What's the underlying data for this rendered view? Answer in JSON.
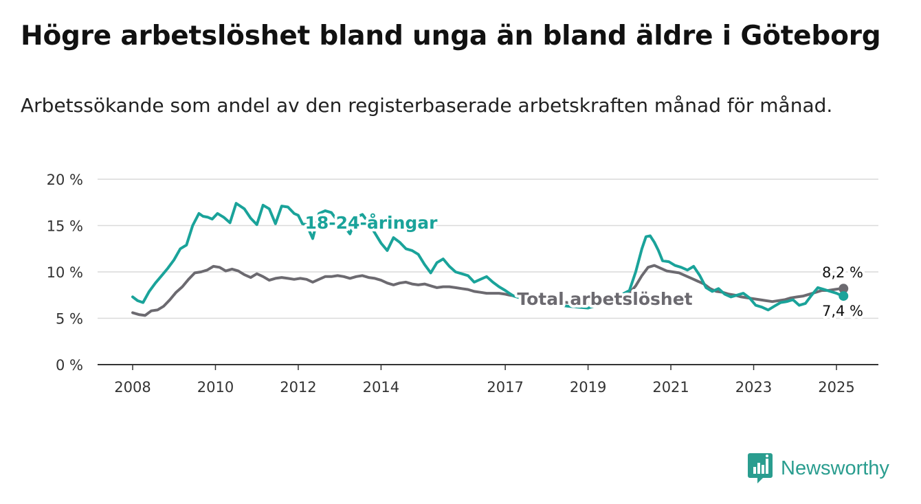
{
  "header": {
    "title": "Högre arbetslöshet bland unga än bland äldre i Göteborg",
    "subtitle": "Arbetssökande som andel av den registerbaserade arbetskraften månad för månad."
  },
  "brand": {
    "name": "Newsworthy",
    "icon": "newsworthy-logo-icon",
    "color": "#2a9d8f"
  },
  "chart_data": {
    "type": "line",
    "title": "Högre arbetslöshet bland unga än bland äldre i Göteborg",
    "subtitle": "Arbetssökande som andel av den registerbaserade arbetskraften månad för månad.",
    "xlabel": "",
    "ylabel": "",
    "ylim": [
      0,
      20
    ],
    "yticks": [
      0,
      5,
      10,
      15,
      20
    ],
    "ytick_labels": [
      "0 %",
      "5 %",
      "10 %",
      "15 %",
      "20 %"
    ],
    "xtick_labels": [
      "2008",
      "2010",
      "2012",
      "2014",
      "2017",
      "2019",
      "2021",
      "2023",
      "2025"
    ],
    "xtick_values": [
      2008,
      2010,
      2012,
      2014,
      2017,
      2019,
      2021,
      2023,
      2025
    ],
    "xlim": [
      2007.2,
      2026.0
    ],
    "grid": "horizontal",
    "series": [
      {
        "name": "18-24-åringar",
        "color": "#1aa39a",
        "x": [
          2008.0,
          2008.12,
          2008.25,
          2008.4,
          2008.55,
          2008.7,
          2008.85,
          2009.0,
          2009.15,
          2009.3,
          2009.45,
          2009.6,
          2009.7,
          2009.82,
          2009.92,
          2010.05,
          2010.2,
          2010.35,
          2010.5,
          2010.7,
          2010.85,
          2011.0,
          2011.15,
          2011.3,
          2011.45,
          2011.6,
          2011.75,
          2011.9,
          2012.0,
          2012.1,
          2012.2,
          2012.35,
          2012.5,
          2012.65,
          2012.8,
          2012.95,
          2013.1,
          2013.25,
          2013.4,
          2013.55,
          2013.7,
          2013.85,
          2014.0,
          2014.15,
          2014.3,
          2014.45,
          2014.6,
          2014.75,
          2014.9,
          2015.05,
          2015.2,
          2015.35,
          2015.5,
          2015.65,
          2015.8,
          2015.95,
          2016.1,
          2016.25,
          2016.4,
          2016.55,
          2016.7,
          2016.85,
          2017.0,
          2017.1,
          2017.2,
          2017.5,
          2018.0,
          2018.5,
          2019.0,
          2019.5,
          2020.0,
          2020.15,
          2020.3,
          2020.4,
          2020.5,
          2020.6,
          2020.7,
          2020.8,
          2020.95,
          2021.1,
          2021.25,
          2021.4,
          2021.55,
          2021.7,
          2021.85,
          2022.0,
          2022.15,
          2022.3,
          2022.45,
          2022.6,
          2022.75,
          2022.9,
          2023.05,
          2023.2,
          2023.35,
          2023.5,
          2023.65,
          2023.8,
          2023.95,
          2024.1,
          2024.25,
          2024.4,
          2024.55,
          2024.7,
          2024.85,
          2025.0,
          2025.1,
          2025.17
        ],
        "y": [
          7.3,
          6.9,
          6.7,
          7.9,
          8.8,
          9.6,
          10.4,
          11.3,
          12.5,
          12.9,
          15.0,
          16.3,
          16.0,
          15.9,
          15.7,
          16.3,
          15.9,
          15.3,
          17.4,
          16.8,
          15.8,
          15.1,
          17.2,
          16.8,
          15.2,
          17.1,
          17.0,
          16.3,
          16.1,
          15.2,
          15.1,
          13.6,
          16.3,
          16.6,
          16.4,
          15.5,
          15.0,
          14.1,
          15.9,
          16.2,
          15.3,
          14.2,
          13.1,
          12.3,
          13.7,
          13.2,
          12.5,
          12.3,
          11.9,
          10.8,
          9.9,
          11.0,
          11.4,
          10.6,
          10.0,
          9.8,
          9.6,
          8.9,
          9.2,
          9.5,
          8.9,
          8.4,
          8.0,
          7.7,
          7.4,
          7.0,
          6.6,
          6.3,
          6.1,
          6.8,
          8.0,
          10.0,
          12.5,
          13.8,
          13.9,
          13.2,
          12.3,
          11.2,
          11.1,
          10.7,
          10.5,
          10.2,
          10.6,
          9.6,
          8.3,
          7.9,
          8.2,
          7.6,
          7.3,
          7.5,
          7.7,
          7.2,
          6.4,
          6.2,
          5.9,
          6.3,
          6.7,
          6.8,
          7.0,
          6.4,
          6.6,
          7.5,
          8.3,
          8.1,
          7.9,
          7.7,
          7.5,
          7.4
        ]
      },
      {
        "name": "Total arbetslöshet",
        "color": "#6c6a70",
        "x": [
          2008.0,
          2008.15,
          2008.3,
          2008.45,
          2008.6,
          2008.75,
          2008.9,
          2009.05,
          2009.2,
          2009.35,
          2009.5,
          2009.65,
          2009.8,
          2009.95,
          2010.1,
          2010.25,
          2010.4,
          2010.55,
          2010.7,
          2010.85,
          2011.0,
          2011.15,
          2011.3,
          2011.45,
          2011.6,
          2011.75,
          2011.9,
          2012.05,
          2012.2,
          2012.35,
          2012.5,
          2012.65,
          2012.8,
          2012.95,
          2013.1,
          2013.25,
          2013.4,
          2013.55,
          2013.7,
          2013.85,
          2014.0,
          2014.15,
          2014.3,
          2014.45,
          2014.6,
          2014.75,
          2014.9,
          2015.05,
          2015.2,
          2015.35,
          2015.5,
          2015.65,
          2015.8,
          2015.95,
          2016.1,
          2016.25,
          2016.4,
          2016.55,
          2016.7,
          2016.85,
          2017.0,
          2017.1,
          2017.5,
          2018.0,
          2018.5,
          2019.0,
          2019.5,
          2020.0,
          2020.15,
          2020.3,
          2020.45,
          2020.6,
          2020.75,
          2020.9,
          2021.05,
          2021.2,
          2021.35,
          2021.5,
          2021.65,
          2021.8,
          2021.95,
          2022.1,
          2022.25,
          2022.4,
          2022.55,
          2022.7,
          2022.85,
          2023.0,
          2023.15,
          2023.3,
          2023.45,
          2023.6,
          2023.75,
          2023.9,
          2024.05,
          2024.2,
          2024.35,
          2024.5,
          2024.65,
          2024.8,
          2024.95,
          2025.1,
          2025.17
        ],
        "y": [
          5.6,
          5.4,
          5.3,
          5.8,
          5.9,
          6.3,
          7.0,
          7.8,
          8.4,
          9.2,
          9.9,
          10.0,
          10.2,
          10.6,
          10.5,
          10.1,
          10.3,
          10.1,
          9.7,
          9.4,
          9.8,
          9.5,
          9.1,
          9.3,
          9.4,
          9.3,
          9.2,
          9.3,
          9.2,
          8.9,
          9.2,
          9.5,
          9.5,
          9.6,
          9.5,
          9.3,
          9.5,
          9.6,
          9.4,
          9.3,
          9.1,
          8.8,
          8.6,
          8.8,
          8.9,
          8.7,
          8.6,
          8.7,
          8.5,
          8.3,
          8.4,
          8.4,
          8.3,
          8.2,
          8.1,
          7.9,
          7.8,
          7.7,
          7.7,
          7.7,
          7.6,
          7.5,
          7.2,
          6.9,
          6.7,
          6.6,
          6.8,
          7.7,
          8.5,
          9.6,
          10.5,
          10.7,
          10.4,
          10.1,
          10.0,
          9.9,
          9.6,
          9.3,
          9.0,
          8.7,
          8.2,
          7.9,
          7.8,
          7.6,
          7.5,
          7.3,
          7.2,
          7.1,
          7.0,
          6.9,
          6.8,
          6.9,
          7.0,
          7.2,
          7.3,
          7.4,
          7.6,
          7.8,
          8.0,
          8.0,
          8.1,
          8.2,
          8.2
        ]
      }
    ],
    "annotations": {
      "end_label_total": "8,2 %",
      "end_label_youth": "7,4 %",
      "label_youth": "18-24-åringar",
      "label_total": "Total arbetslöshet"
    }
  }
}
